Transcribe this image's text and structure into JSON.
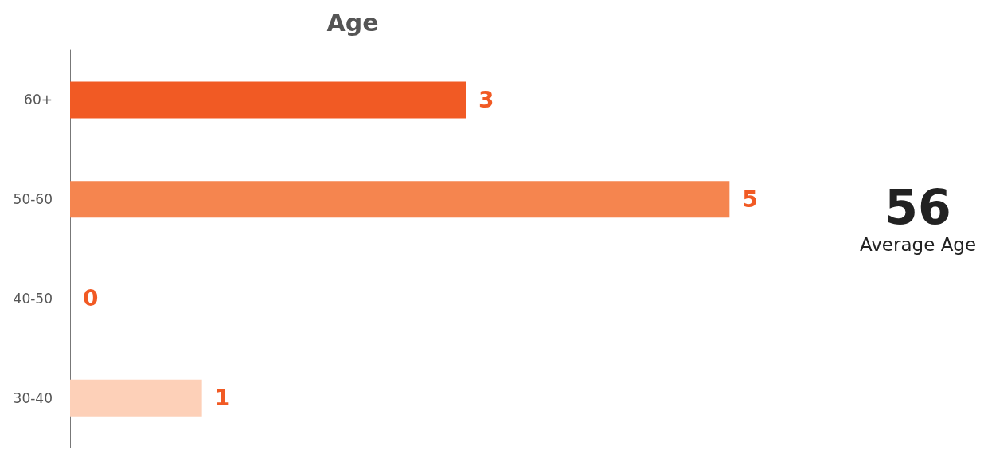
{
  "chart_data": {
    "type": "bar",
    "orientation": "horizontal",
    "title": "Age",
    "categories": [
      "60+",
      "50-60",
      "40-50",
      "30-40"
    ],
    "values": [
      3,
      5,
      0,
      1
    ],
    "colors": [
      "#f15a24",
      "#f5854f",
      "#f7a77f",
      "#fdd0b8"
    ],
    "data_labels": true,
    "annotations": [
      "56",
      "Average Age"
    ]
  }
}
